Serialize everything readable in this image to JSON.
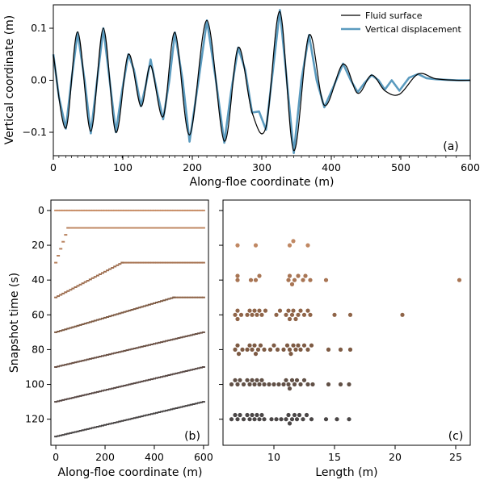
{
  "chart_data": [
    {
      "panel": "(a)",
      "type": "line",
      "xlabel": "Along-floe coordinate (m)",
      "ylabel": "Vertical coordinate (m)",
      "xlim": [
        0,
        600
      ],
      "ylim": [
        -0.145,
        0.145
      ],
      "xticks": [
        0,
        100,
        200,
        300,
        400,
        500,
        600
      ],
      "yticks": [
        -0.1,
        0.0,
        0.1
      ],
      "ytick_labels": [
        "−0.1",
        "0.0",
        "0.1"
      ],
      "legend": {
        "placement": "top-right",
        "entries": [
          "Fluid surface",
          "Vertical displacement"
        ]
      },
      "series": [
        {
          "name": "Fluid surface",
          "color": "#000000",
          "x": [
            0,
            18,
            35,
            54,
            72,
            90,
            108,
            126,
            140,
            158,
            175,
            196,
            221,
            246,
            266,
            286,
            306,
            326,
            346,
            368,
            390,
            417,
            438,
            458,
            477,
            498,
            525,
            550,
            580,
            600
          ],
          "y": [
            0.05,
            -0.092,
            0.093,
            -0.098,
            0.1,
            -0.1,
            0.05,
            -0.05,
            0.028,
            -0.07,
            0.092,
            -0.105,
            0.115,
            -0.117,
            0.063,
            -0.062,
            -0.09,
            0.132,
            -0.135,
            0.087,
            -0.048,
            0.031,
            -0.025,
            0.01,
            -0.02,
            -0.027,
            0.012,
            0.003,
            0.0,
            0.0
          ]
        },
        {
          "name": "Vertical displacement",
          "color": "#5b9bbf",
          "x": [
            0,
            8,
            18,
            26,
            35,
            45,
            54,
            63,
            72,
            81,
            90,
            99,
            108,
            116,
            126,
            133,
            140,
            149,
            158,
            167,
            175,
            186,
            196,
            209,
            221,
            234,
            246,
            256,
            266,
            276,
            286,
            296,
            306,
            316,
            326,
            336,
            346,
            357,
            368,
            379,
            390,
            404,
            417,
            428,
            438,
            448,
            458,
            468,
            477,
            487,
            498,
            512,
            525,
            537,
            550,
            565,
            580,
            600
          ],
          "y": [
            0.05,
            -0.032,
            -0.093,
            0.0,
            0.092,
            0.0,
            -0.102,
            0.0,
            0.1,
            0.0,
            -0.1,
            -0.02,
            0.05,
            0.02,
            -0.05,
            -0.01,
            0.04,
            -0.02,
            -0.075,
            0.0,
            0.092,
            0.0,
            -0.118,
            0.0,
            0.115,
            0.0,
            -0.12,
            -0.02,
            0.063,
            0.02,
            -0.062,
            -0.06,
            -0.095,
            0.02,
            0.135,
            0.0,
            -0.14,
            0.0,
            0.087,
            0.0,
            -0.052,
            -0.01,
            0.032,
            0.0,
            -0.023,
            -0.005,
            0.01,
            0.0,
            -0.018,
            0.0,
            -0.02,
            0.005,
            0.012,
            0.004,
            0.002,
            0.001,
            0.0,
            0.0
          ]
        }
      ]
    },
    {
      "panel": "(b)",
      "type": "scatter",
      "xlabel": "Along-floe coordinate (m)",
      "ylabel": "Snapshot time (s)",
      "xlim": [
        -20,
        620
      ],
      "ylim": [
        135,
        -6
      ],
      "xticks": [
        0,
        200,
        400,
        600
      ],
      "yticks": [
        0,
        20,
        40,
        60,
        80,
        100,
        120
      ],
      "series": [
        {
          "time": 0,
          "color": "#c98f69",
          "x_start": 0,
          "x_end": 600,
          "y_start": 0,
          "y_end": 0
        },
        {
          "time": 10,
          "color": "#c08863",
          "x_start": 50,
          "x_end": 600,
          "y_start": 10,
          "y_end": 10
        },
        {
          "time": 20,
          "color": "#b8825e",
          "x_start": 0,
          "x_end": 50,
          "y_start": 30,
          "y_end": 10
        },
        {
          "time": 30,
          "color": "#a87554",
          "x_start": 270,
          "x_end": 600,
          "y_start": 30,
          "y_end": 30
        },
        {
          "time": 40,
          "color": "#9d6d4e",
          "x_start": 0,
          "x_end": 270,
          "y_start": 50,
          "y_end": 30
        },
        {
          "time": 50,
          "color": "#8f6448",
          "x_start": 480,
          "x_end": 600,
          "y_start": 50,
          "y_end": 50
        },
        {
          "time": 60,
          "color": "#7d5a43",
          "x_start": 0,
          "x_end": 480,
          "y_start": 70,
          "y_end": 50
        },
        {
          "time": 80,
          "color": "#6a5044",
          "x_start": 0,
          "x_end": 600,
          "y_start": 90,
          "y_end": 70
        },
        {
          "time": 100,
          "color": "#584844",
          "x_start": 0,
          "x_end": 600,
          "y_start": 110,
          "y_end": 90
        },
        {
          "time": 120,
          "color": "#484444",
          "x_start": 0,
          "x_end": 600,
          "y_start": 130,
          "y_end": 110
        }
      ]
    },
    {
      "panel": "(c)",
      "type": "scatter",
      "xlabel": "Length (m)",
      "ylabel": "",
      "xlim": [
        5.8,
        26.2
      ],
      "ylim": [
        135,
        -6
      ],
      "xticks": [
        10,
        15,
        20,
        25
      ],
      "series": [
        {
          "time": 20,
          "color": "#c08863",
          "lengths": [
            7.0,
            8.5,
            11.3,
            11.6,
            12.8
          ]
        },
        {
          "time": 40,
          "color": "#a87554",
          "lengths": [
            7.0,
            7.0,
            8.1,
            8.5,
            8.8,
            11.2,
            11.3,
            11.5,
            11.7,
            12.0,
            12.4,
            12.6,
            13.0,
            14.3,
            25.3
          ]
        },
        {
          "time": 60,
          "color": "#8f6448",
          "lengths": [
            6.8,
            7.0,
            7.0,
            7.3,
            7.8,
            8.0,
            8.2,
            8.4,
            8.6,
            8.8,
            9.0,
            9.3,
            10.2,
            10.5,
            11.0,
            11.2,
            11.3,
            11.5,
            11.6,
            11.8,
            12.0,
            12.2,
            12.5,
            12.8,
            13.0,
            15.0,
            16.3,
            20.6
          ]
        },
        {
          "time": 80,
          "color": "#7d5a43",
          "lengths": [
            6.8,
            7.0,
            7.1,
            7.4,
            7.8,
            8.0,
            8.2,
            8.4,
            8.5,
            8.7,
            8.9,
            9.2,
            9.7,
            10.0,
            10.3,
            10.8,
            11.1,
            11.3,
            11.4,
            11.6,
            11.8,
            12.0,
            12.2,
            12.5,
            12.8,
            13.1,
            14.5,
            15.5,
            16.3
          ]
        },
        {
          "time": 100,
          "color": "#615046",
          "lengths": [
            6.5,
            6.8,
            7.0,
            7.2,
            7.5,
            7.8,
            8.0,
            8.2,
            8.4,
            8.6,
            8.8,
            9.0,
            9.2,
            9.6,
            10.0,
            10.4,
            10.8,
            11.0,
            11.2,
            11.3,
            11.5,
            11.7,
            11.9,
            12.2,
            12.5,
            12.8,
            13.2,
            14.5,
            15.5,
            16.2
          ]
        },
        {
          "time": 120,
          "color": "#4a4646",
          "lengths": [
            6.5,
            6.8,
            7.0,
            7.2,
            7.5,
            7.8,
            8.0,
            8.2,
            8.4,
            8.6,
            8.8,
            9.0,
            9.2,
            9.8,
            10.2,
            10.6,
            11.0,
            11.2,
            11.3,
            11.5,
            11.7,
            11.9,
            12.1,
            12.4,
            12.7,
            13.1,
            14.3,
            15.2,
            16.2
          ]
        }
      ]
    }
  ]
}
